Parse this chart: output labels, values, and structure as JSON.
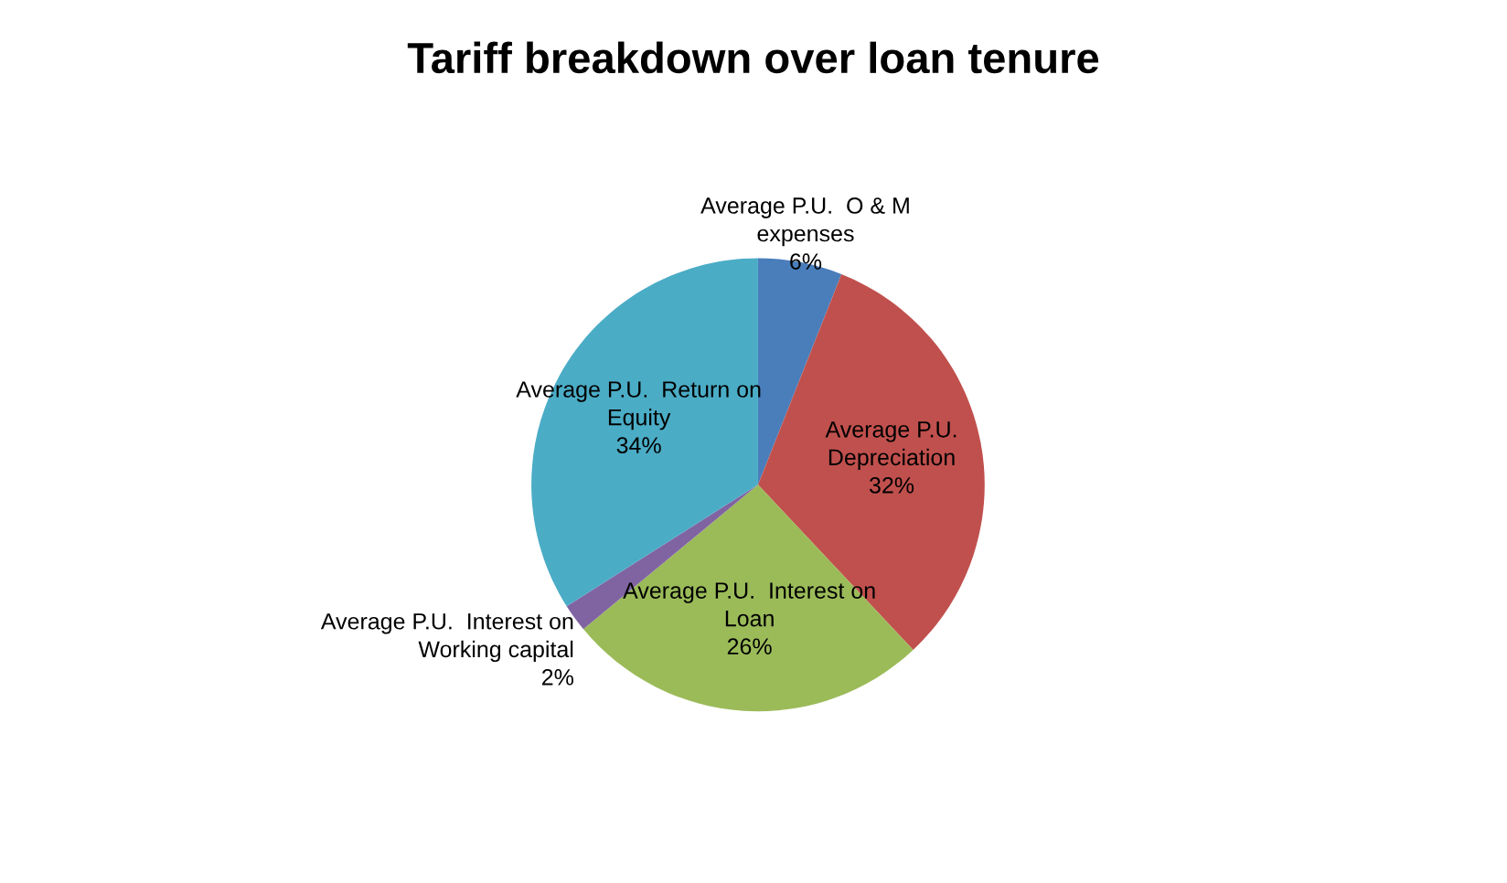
{
  "chart_data": {
    "type": "pie",
    "title": "Tariff breakdown over loan tenure",
    "categories": [
      "Average P.U.  O & M\nexpenses",
      "Average P.U.\nDepreciation",
      "Average P.U.  Interest on\nLoan",
      "Average P.U.  Interest on\nWorking capital",
      "Average P.U.  Return on\nEquity"
    ],
    "values": [
      6,
      32,
      26,
      2,
      34
    ],
    "value_labels": [
      "6%",
      "32%",
      "26%",
      "2%",
      "34%"
    ],
    "colors": [
      "#4a7ebb",
      "#c0504d",
      "#9bbb59",
      "#8064a2",
      "#4bacc6"
    ]
  }
}
